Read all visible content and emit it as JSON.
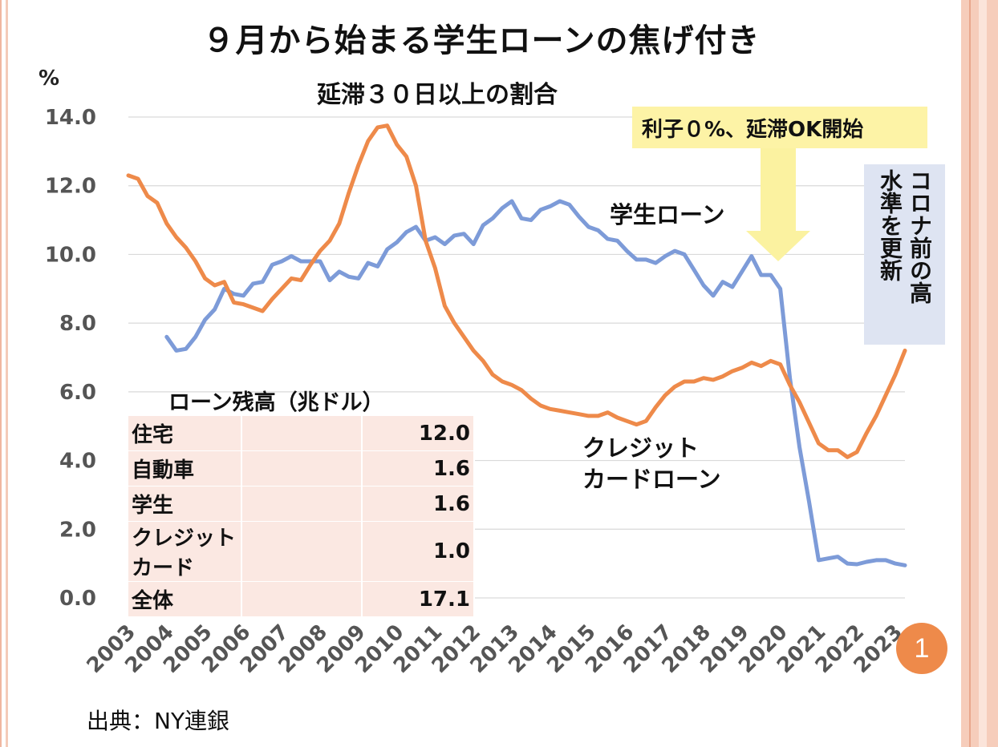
{
  "title": "９月から始まる学生ローンの焦げ付き",
  "subtitle": "延滞３０日以上の割合",
  "unit": "%",
  "note": "利子０%、延滞OK開始",
  "side_note_col1": "コロナ前の高",
  "side_note_col2": "水準を更新",
  "badge": "1",
  "source": "出典：NY連銀",
  "colors": {
    "student": "#7d9bd8",
    "credit": "#ee8a4a",
    "grid": "#d9d9d9",
    "arrow": "#fbf2a0"
  },
  "table": {
    "title": "ローン残高（兆ドル）",
    "rows": [
      {
        "label": "住宅",
        "value": "12.0"
      },
      {
        "label": "自動車",
        "value": "1.6"
      },
      {
        "label": "学生",
        "value": "1.6"
      },
      {
        "label": "クレジットカード",
        "value": "1.0"
      },
      {
        "label": "全体",
        "value": "17.1"
      }
    ]
  },
  "chart_data": {
    "type": "line",
    "ylim": [
      0,
      14
    ],
    "yticks": [
      "0.0",
      "2.0",
      "4.0",
      "6.0",
      "8.0",
      "10.0",
      "12.0",
      "14.0"
    ],
    "xticks": [
      "2003",
      "2004",
      "2005",
      "2006",
      "2007",
      "2008",
      "2009",
      "2010",
      "2011",
      "2012",
      "2013",
      "2014",
      "2015",
      "2016",
      "2017",
      "2018",
      "2019",
      "2020",
      "2021",
      "2022",
      "2023"
    ],
    "grid": true,
    "series": [
      {
        "name": "学生ローン",
        "label_lines": [
          "学生ローン"
        ],
        "color": "#7d9bd8",
        "points": [
          [
            2004.0,
            7.6
          ],
          [
            2004.25,
            7.2
          ],
          [
            2004.5,
            7.25
          ],
          [
            2004.75,
            7.6
          ],
          [
            2005.0,
            8.1
          ],
          [
            2005.25,
            8.4
          ],
          [
            2005.5,
            9.0
          ],
          [
            2005.75,
            8.85
          ],
          [
            2006.0,
            8.8
          ],
          [
            2006.25,
            9.15
          ],
          [
            2006.5,
            9.2
          ],
          [
            2006.75,
            9.7
          ],
          [
            2007.0,
            9.8
          ],
          [
            2007.25,
            9.95
          ],
          [
            2007.5,
            9.8
          ],
          [
            2007.75,
            9.8
          ],
          [
            2008.0,
            9.8
          ],
          [
            2008.25,
            9.25
          ],
          [
            2008.5,
            9.5
          ],
          [
            2008.75,
            9.35
          ],
          [
            2009.0,
            9.3
          ],
          [
            2009.25,
            9.75
          ],
          [
            2009.5,
            9.65
          ],
          [
            2009.75,
            10.15
          ],
          [
            2010.0,
            10.35
          ],
          [
            2010.25,
            10.65
          ],
          [
            2010.5,
            10.8
          ],
          [
            2010.75,
            10.4
          ],
          [
            2011.0,
            10.5
          ],
          [
            2011.25,
            10.3
          ],
          [
            2011.5,
            10.55
          ],
          [
            2011.75,
            10.6
          ],
          [
            2012.0,
            10.3
          ],
          [
            2012.25,
            10.85
          ],
          [
            2012.5,
            11.05
          ],
          [
            2012.75,
            11.35
          ],
          [
            2013.0,
            11.55
          ],
          [
            2013.25,
            11.05
          ],
          [
            2013.5,
            11.0
          ],
          [
            2013.75,
            11.3
          ],
          [
            2014.0,
            11.4
          ],
          [
            2014.25,
            11.55
          ],
          [
            2014.5,
            11.45
          ],
          [
            2014.75,
            11.1
          ],
          [
            2015.0,
            10.8
          ],
          [
            2015.25,
            10.7
          ],
          [
            2015.5,
            10.45
          ],
          [
            2015.75,
            10.4
          ],
          [
            2016.0,
            10.1
          ],
          [
            2016.25,
            9.85
          ],
          [
            2016.5,
            9.85
          ],
          [
            2016.75,
            9.75
          ],
          [
            2017.0,
            9.95
          ],
          [
            2017.25,
            10.1
          ],
          [
            2017.5,
            10.0
          ],
          [
            2017.75,
            9.55
          ],
          [
            2018.0,
            9.1
          ],
          [
            2018.25,
            8.8
          ],
          [
            2018.5,
            9.2
          ],
          [
            2018.75,
            9.05
          ],
          [
            2019.0,
            9.5
          ],
          [
            2019.25,
            9.95
          ],
          [
            2019.5,
            9.4
          ],
          [
            2019.75,
            9.4
          ],
          [
            2020.0,
            9.0
          ],
          [
            2020.25,
            6.4
          ],
          [
            2020.5,
            4.4
          ],
          [
            2020.75,
            2.8
          ],
          [
            2021.0,
            1.1
          ],
          [
            2021.25,
            1.15
          ],
          [
            2021.5,
            1.2
          ],
          [
            2021.75,
            1.0
          ],
          [
            2022.0,
            0.98
          ],
          [
            2022.25,
            1.05
          ],
          [
            2022.5,
            1.1
          ],
          [
            2022.75,
            1.1
          ],
          [
            2023.0,
            1.0
          ],
          [
            2023.25,
            0.95
          ]
        ]
      },
      {
        "name": "クレジットカードローン",
        "label_lines": [
          "クレジット",
          "カードローン"
        ],
        "color": "#ee8a4a",
        "points": [
          [
            2003.0,
            12.3
          ],
          [
            2003.25,
            12.2
          ],
          [
            2003.5,
            11.7
          ],
          [
            2003.75,
            11.5
          ],
          [
            2004.0,
            10.9
          ],
          [
            2004.25,
            10.5
          ],
          [
            2004.5,
            10.2
          ],
          [
            2004.75,
            9.8
          ],
          [
            2005.0,
            9.3
          ],
          [
            2005.25,
            9.1
          ],
          [
            2005.5,
            9.2
          ],
          [
            2005.75,
            8.6
          ],
          [
            2006.0,
            8.55
          ],
          [
            2006.25,
            8.45
          ],
          [
            2006.5,
            8.35
          ],
          [
            2006.75,
            8.7
          ],
          [
            2007.0,
            9.0
          ],
          [
            2007.25,
            9.3
          ],
          [
            2007.5,
            9.25
          ],
          [
            2007.75,
            9.7
          ],
          [
            2008.0,
            10.1
          ],
          [
            2008.25,
            10.4
          ],
          [
            2008.5,
            10.9
          ],
          [
            2008.75,
            11.8
          ],
          [
            2009.0,
            12.6
          ],
          [
            2009.25,
            13.3
          ],
          [
            2009.5,
            13.7
          ],
          [
            2009.75,
            13.75
          ],
          [
            2010.0,
            13.2
          ],
          [
            2010.25,
            12.85
          ],
          [
            2010.5,
            12.0
          ],
          [
            2010.75,
            10.4
          ],
          [
            2011.0,
            9.6
          ],
          [
            2011.25,
            8.5
          ],
          [
            2011.5,
            8.0
          ],
          [
            2011.75,
            7.6
          ],
          [
            2012.0,
            7.2
          ],
          [
            2012.25,
            6.9
          ],
          [
            2012.5,
            6.5
          ],
          [
            2012.75,
            6.3
          ],
          [
            2013.0,
            6.2
          ],
          [
            2013.25,
            6.05
          ],
          [
            2013.5,
            5.8
          ],
          [
            2013.75,
            5.6
          ],
          [
            2014.0,
            5.5
          ],
          [
            2014.25,
            5.45
          ],
          [
            2014.5,
            5.4
          ],
          [
            2014.75,
            5.35
          ],
          [
            2015.0,
            5.3
          ],
          [
            2015.25,
            5.3
          ],
          [
            2015.5,
            5.4
          ],
          [
            2015.75,
            5.25
          ],
          [
            2016.0,
            5.15
          ],
          [
            2016.25,
            5.05
          ],
          [
            2016.5,
            5.15
          ],
          [
            2016.75,
            5.55
          ],
          [
            2017.0,
            5.9
          ],
          [
            2017.25,
            6.15
          ],
          [
            2017.5,
            6.3
          ],
          [
            2017.75,
            6.3
          ],
          [
            2018.0,
            6.4
          ],
          [
            2018.25,
            6.35
          ],
          [
            2018.5,
            6.45
          ],
          [
            2018.75,
            6.6
          ],
          [
            2019.0,
            6.7
          ],
          [
            2019.25,
            6.85
          ],
          [
            2019.5,
            6.75
          ],
          [
            2019.75,
            6.9
          ],
          [
            2020.0,
            6.8
          ],
          [
            2020.25,
            6.2
          ],
          [
            2020.5,
            5.7
          ],
          [
            2020.75,
            5.1
          ],
          [
            2021.0,
            4.5
          ],
          [
            2021.25,
            4.3
          ],
          [
            2021.5,
            4.3
          ],
          [
            2021.75,
            4.1
          ],
          [
            2022.0,
            4.25
          ],
          [
            2022.25,
            4.8
          ],
          [
            2022.5,
            5.3
          ],
          [
            2022.75,
            5.9
          ],
          [
            2023.0,
            6.5
          ],
          [
            2023.25,
            7.2
          ]
        ]
      }
    ]
  }
}
